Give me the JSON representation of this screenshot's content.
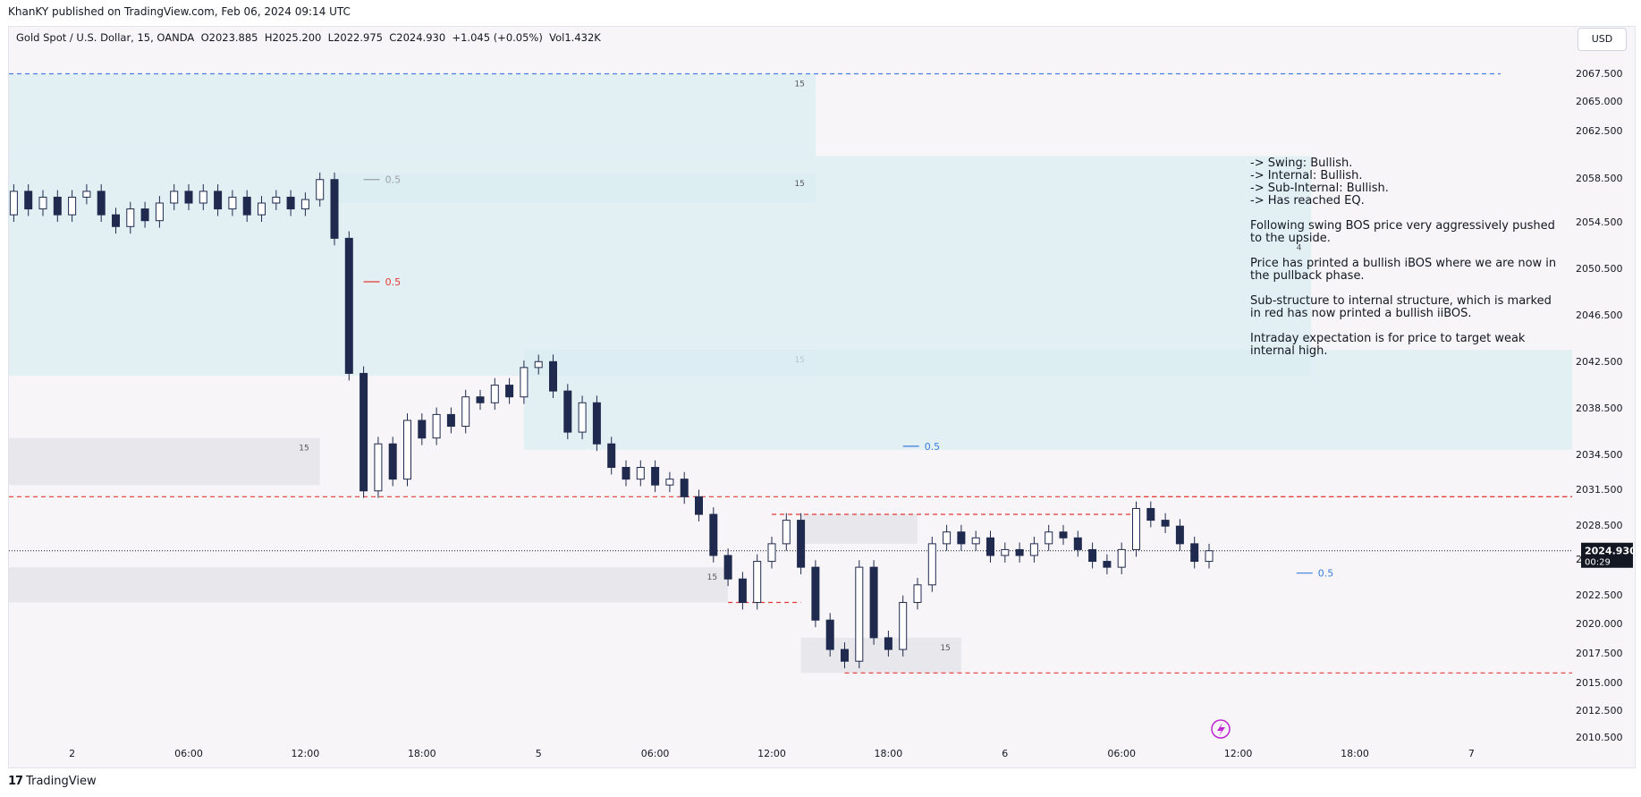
{
  "publisher_line": "KhanKY published on TradingView.com, Feb 06, 2024 09:14 UTC",
  "legend": {
    "symbol": "Gold Spot / U.S. Dollar, 15, OANDA",
    "open": "O2023.885",
    "high": "H2025.200",
    "low": "L2022.975",
    "close": "C2024.930",
    "change": "+1.045 (+0.05%)",
    "volume": "Vol1.432K"
  },
  "currency": "USD",
  "price_tag": {
    "price": "2024.930",
    "countdown": "00:29"
  },
  "footer": {
    "logo_text": "TradingView"
  },
  "notes": [
    "-> Swing: Bullish.",
    "-> Internal: Bullish.",
    "-> Sub-Internal: Bullish.",
    "-> Has reached EQ.",
    "",
    "Following swing BOS price very aggressively pushed",
    "to the upside.",
    "",
    "Price has printed a bullish iBOS where we are now in",
    "the pullback phase.",
    "",
    "Sub-structure to internal structure, which is marked",
    "in red has now printed a bullish iiBOS.",
    "",
    "Intraday expectation is for price to target weak",
    "internal high."
  ],
  "colors": {
    "candle_up": "#ffffff",
    "candle_down": "#1f2a4e",
    "zone_blue": "#dbeef3",
    "zone_gray": "#e6e6ea",
    "swing_line": "#4a7fe0",
    "internal_line": "#e53935",
    "eq_gray": "#9aa0a6",
    "eq_red": "#e53935",
    "eq_blue": "#3b7ddd"
  },
  "chart_data": {
    "type": "candlestick",
    "symbol": "XAUUSD",
    "timeframe": "15",
    "ylim": [
      2009.5,
      2069.5
    ],
    "y_ticks": [
      "2067.500",
      "2065.000",
      "2062.500",
      "2058.500",
      "2054.500",
      "2050.500",
      "2046.500",
      "2042.500",
      "2038.500",
      "2034.500",
      "2031.500",
      "2028.500",
      "2025.500",
      "2022.500",
      "2020.000",
      "2017.500",
      "2015.000",
      "2012.500",
      "2010.500"
    ],
    "x_ticks": [
      {
        "label": "18:00",
        "t": -46
      },
      {
        "label": "2",
        "t": -38
      },
      {
        "label": "06:00",
        "t": -30
      },
      {
        "label": "12:00",
        "t": -22
      },
      {
        "label": "18:00",
        "t": -14
      },
      {
        "label": "5",
        "t": -6
      },
      {
        "label": "06:00",
        "t": 2
      },
      {
        "label": "12:00",
        "t": 10
      },
      {
        "label": "18:00",
        "t": 18
      },
      {
        "label": "6",
        "t": 26
      },
      {
        "label": "06:00",
        "t": 34
      },
      {
        "label": "12:00",
        "t": 42
      },
      {
        "label": "18:00",
        "t": 50
      },
      {
        "label": "7",
        "t": 58
      }
    ],
    "candles": [
      [
        2048.0,
        2052.0
      ],
      [
        2052.0,
        2062.0
      ],
      [
        2062.0,
        2060.0
      ],
      [
        2060.0,
        2064.5
      ],
      [
        2064.5,
        2059.0
      ],
      [
        2059.0,
        2051.5
      ],
      [
        2051.5,
        2056.0
      ],
      [
        2056.0,
        2054.0
      ],
      [
        2054.0,
        2057.0
      ],
      [
        2057.0,
        2053.5
      ],
      [
        2053.5,
        2055.5
      ],
      [
        2055.5,
        2054.0
      ],
      [
        2054.0,
        2055.0
      ],
      [
        2055.0,
        2053.5
      ],
      [
        2053.5,
        2055.0
      ],
      [
        2055.0,
        2055.5
      ],
      [
        2055.5,
        2053.5
      ],
      [
        2053.5,
        2052.5
      ],
      [
        2052.5,
        2054.0
      ],
      [
        2054.0,
        2053.0
      ],
      [
        2053.0,
        2054.5
      ],
      [
        2054.5,
        2055.5
      ],
      [
        2055.5,
        2054.5
      ],
      [
        2054.5,
        2055.5
      ],
      [
        2055.5,
        2054.0
      ],
      [
        2054.0,
        2055.0
      ],
      [
        2055.0,
        2053.5
      ],
      [
        2053.5,
        2054.5
      ],
      [
        2054.5,
        2055.0
      ],
      [
        2055.0,
        2054.0
      ],
      [
        2054.0,
        2054.8
      ],
      [
        2054.8,
        2056.5
      ],
      [
        2056.5,
        2051.5
      ],
      [
        2051.5,
        2040.0
      ],
      [
        2040.0,
        2030.0
      ],
      [
        2030.0,
        2034.0
      ],
      [
        2034.0,
        2031.0
      ],
      [
        2031.0,
        2036.0
      ],
      [
        2036.0,
        2034.5
      ],
      [
        2034.5,
        2036.5
      ],
      [
        2036.5,
        2035.5
      ],
      [
        2035.5,
        2038.0
      ],
      [
        2038.0,
        2037.5
      ],
      [
        2037.5,
        2039.0
      ],
      [
        2039.0,
        2038.0
      ],
      [
        2038.0,
        2040.5
      ],
      [
        2040.5,
        2041.0
      ],
      [
        2041.0,
        2038.5
      ],
      [
        2038.5,
        2035.0
      ],
      [
        2035.0,
        2037.5
      ],
      [
        2037.5,
        2034.0
      ],
      [
        2034.0,
        2032.0
      ],
      [
        2032.0,
        2031.0
      ],
      [
        2031.0,
        2032.0
      ],
      [
        2032.0,
        2030.5
      ],
      [
        2030.5,
        2031.0
      ],
      [
        2031.0,
        2029.5
      ],
      [
        2029.5,
        2028.0
      ],
      [
        2028.0,
        2024.5
      ],
      [
        2024.5,
        2022.5
      ],
      [
        2022.5,
        2020.5
      ],
      [
        2020.5,
        2024.0
      ],
      [
        2024.0,
        2025.5
      ],
      [
        2025.5,
        2027.5
      ],
      [
        2027.5,
        2023.5
      ],
      [
        2023.5,
        2019.0
      ],
      [
        2019.0,
        2016.5
      ],
      [
        2016.5,
        2015.5
      ],
      [
        2015.5,
        2023.5
      ],
      [
        2023.5,
        2017.5
      ],
      [
        2017.5,
        2016.5
      ],
      [
        2016.5,
        2020.5
      ],
      [
        2020.5,
        2022.0
      ],
      [
        2022.0,
        2025.5
      ],
      [
        2025.5,
        2026.5
      ],
      [
        2026.5,
        2025.5
      ],
      [
        2025.5,
        2026.0
      ],
      [
        2026.0,
        2024.5
      ],
      [
        2024.5,
        2025.0
      ],
      [
        2025.0,
        2024.5
      ],
      [
        2024.5,
        2025.5
      ],
      [
        2025.5,
        2026.5
      ],
      [
        2026.5,
        2026.0
      ],
      [
        2026.0,
        2025.0
      ],
      [
        2025.0,
        2024.0
      ],
      [
        2024.0,
        2023.5
      ],
      [
        2023.5,
        2025.0
      ],
      [
        2025.0,
        2028.5
      ],
      [
        2028.5,
        2027.5
      ],
      [
        2027.5,
        2027.0
      ],
      [
        2027.0,
        2025.5
      ],
      [
        2025.5,
        2024.0
      ],
      [
        2024.0,
        2024.9
      ]
    ],
    "t0": -52,
    "t_step": 1,
    "zones": [
      {
        "kind": "blue",
        "t1": -52,
        "t2": 13,
        "p1": 2058.5,
        "p2": 2065.5,
        "label": "15"
      },
      {
        "kind": "blue",
        "t1": -52,
        "t2": 47,
        "p1": 2039.8,
        "p2": 2058.5
      },
      {
        "kind": "blue",
        "t1": -20,
        "t2": 13,
        "p1": 2054.5,
        "p2": 2057.0,
        "label": "15"
      },
      {
        "kind": "blue",
        "t1": -5,
        "t2": 13,
        "p1": 2039.8,
        "p2": 2042.0,
        "label": "15"
      },
      {
        "kind": "blue",
        "t1": -7,
        "t2": 73,
        "p1": 2033.5,
        "p2": 2042.0
      },
      {
        "kind": "gray",
        "t1": -52,
        "t2": -21,
        "p1": 2030.5,
        "p2": 2034.5,
        "label": "15"
      },
      {
        "kind": "gray",
        "t1": -52,
        "t2": 7,
        "p1": 2020.5,
        "p2": 2023.5,
        "label": "15"
      },
      {
        "kind": "gray",
        "t1": 12,
        "t2": 20,
        "p1": 2025.5,
        "p2": 2028.0
      },
      {
        "kind": "gray",
        "t1": 12,
        "t2": 23,
        "p1": 2014.5,
        "p2": 2017.5,
        "label": "15"
      }
    ],
    "lines": [
      {
        "kind": "swing",
        "t1": -50,
        "t2": 60,
        "p": 2065.5
      },
      {
        "kind": "internal",
        "t1": -52,
        "t2": 80,
        "p": 2029.5
      },
      {
        "kind": "internal",
        "t1": 10,
        "t2": 35,
        "p": 2028.0
      },
      {
        "kind": "internal",
        "t1": 35,
        "t2": 80,
        "p": 2029.5
      },
      {
        "kind": "internal",
        "t1": 7,
        "t2": 12,
        "p": 2020.5
      },
      {
        "kind": "internal",
        "t1": 15,
        "t2": 80,
        "p": 2014.5
      }
    ],
    "eq_labels": [
      {
        "t": -18,
        "p": 2056.5,
        "kind": "gray",
        "label": "0.5"
      },
      {
        "t": -18,
        "p": 2047.8,
        "kind": "red",
        "label": "0.5"
      },
      {
        "t": 19,
        "p": 2033.8,
        "kind": "blue",
        "label": "0.5"
      },
      {
        "t": 46,
        "p": 2023.0,
        "kind": "blue",
        "label": "0.5"
      }
    ],
    "extra_labels": [
      {
        "t": 46,
        "p": 2050.5,
        "label": "4"
      }
    ]
  }
}
